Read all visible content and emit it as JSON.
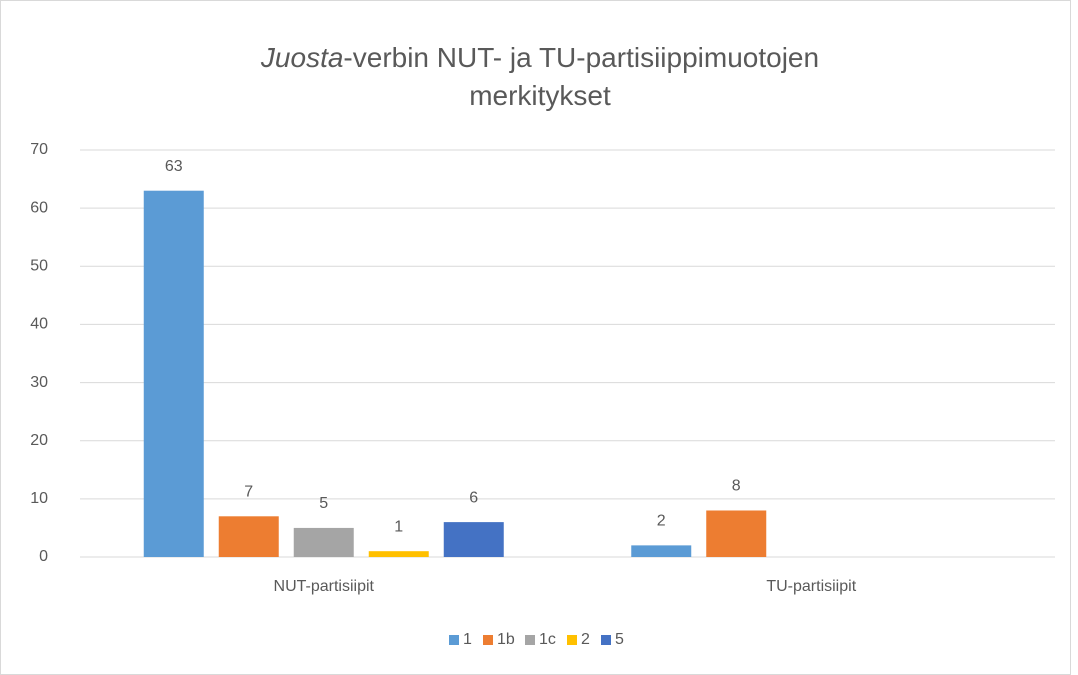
{
  "chart_data": {
    "type": "bar",
    "title": [
      "Juosta",
      "-verbin NUT- ja TU-partisiippimuotojen",
      "merkitykset"
    ],
    "title_italic": [
      true,
      false,
      false
    ],
    "categories": [
      "NUT-partisiipit",
      "TU-partisiipit"
    ],
    "series": [
      {
        "name": "1",
        "color": "#5b9bd5",
        "values": [
          63,
          2
        ]
      },
      {
        "name": "1b",
        "color": "#ed7d31",
        "values": [
          7,
          8
        ]
      },
      {
        "name": "1c",
        "color": "#a5a5a5",
        "values": [
          5,
          null
        ]
      },
      {
        "name": "2",
        "color": "#ffc000",
        "values": [
          1,
          null
        ]
      },
      {
        "name": "5",
        "color": "#4472c4",
        "values": [
          6,
          null
        ]
      }
    ],
    "ylim": [
      0,
      70
    ],
    "yticks": [
      0,
      10,
      20,
      30,
      40,
      50,
      60,
      70
    ],
    "grid": true,
    "legend": "bottom"
  }
}
